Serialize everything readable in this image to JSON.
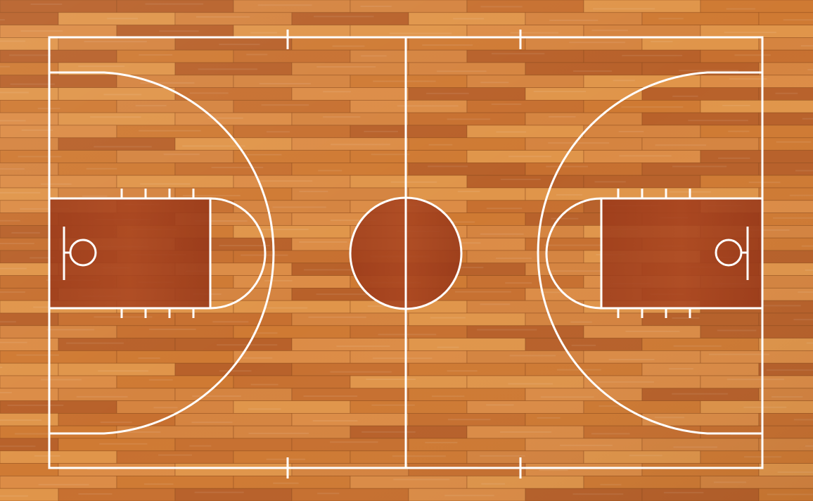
{
  "colors": {
    "floor_base": "#cf7a33",
    "floor_light": "#e0954a",
    "floor_dark": "#b8612a",
    "plank_seam": "#8a4a1c",
    "paint": "#a43c1c",
    "paint_dark": "#8e3216",
    "lines": "#ffffff"
  },
  "court": {
    "type": "basketball-full-court",
    "view": "top-down",
    "floor": "hardwood-planks"
  }
}
